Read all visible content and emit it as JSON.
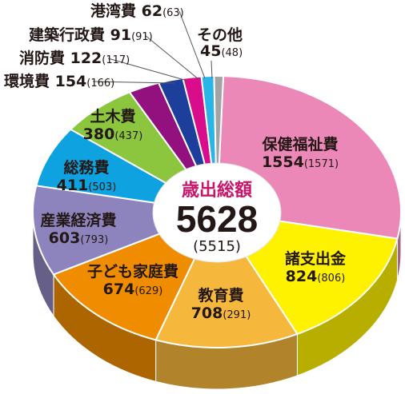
{
  "chart_data": {
    "type": "pie",
    "style": "3d-donut",
    "center": {
      "title": "歳出総額",
      "total": "5628",
      "previous": "(5515)",
      "title_color": "#c8166b"
    },
    "slices": [
      {
        "name": "保健福祉費",
        "value": 1554,
        "previous": 1571,
        "color": "#ec88b8"
      },
      {
        "name": "諸支出金",
        "value": 824,
        "previous": 806,
        "color": "#fff200"
      },
      {
        "name": "教育費",
        "value": 708,
        "previous": 291,
        "color": "#f6b83c"
      },
      {
        "name": "子ども家庭費",
        "value": 674,
        "previous": 629,
        "color": "#f08c00"
      },
      {
        "name": "産業経済費",
        "value": 603,
        "previous": 793,
        "color": "#8e84bd"
      },
      {
        "name": "総務費",
        "value": 411,
        "previous": 503,
        "color": "#0ea3e0"
      },
      {
        "name": "土木費",
        "value": 380,
        "previous": 437,
        "color": "#8cc63f"
      },
      {
        "name": "環境費",
        "value": 154,
        "previous": 166,
        "color": "#92117f"
      },
      {
        "name": "消防費",
        "value": 122,
        "previous": 117,
        "color": "#1d3f9b"
      },
      {
        "name": "建築行政費",
        "value": 91,
        "previous": 91,
        "color": "#d90d8b"
      },
      {
        "name": "港湾費",
        "value": 62,
        "previous": 63,
        "color": "#29b6e6"
      },
      {
        "name": "その他",
        "value": 45,
        "previous": 48,
        "color": "#a3a3a3"
      }
    ]
  }
}
